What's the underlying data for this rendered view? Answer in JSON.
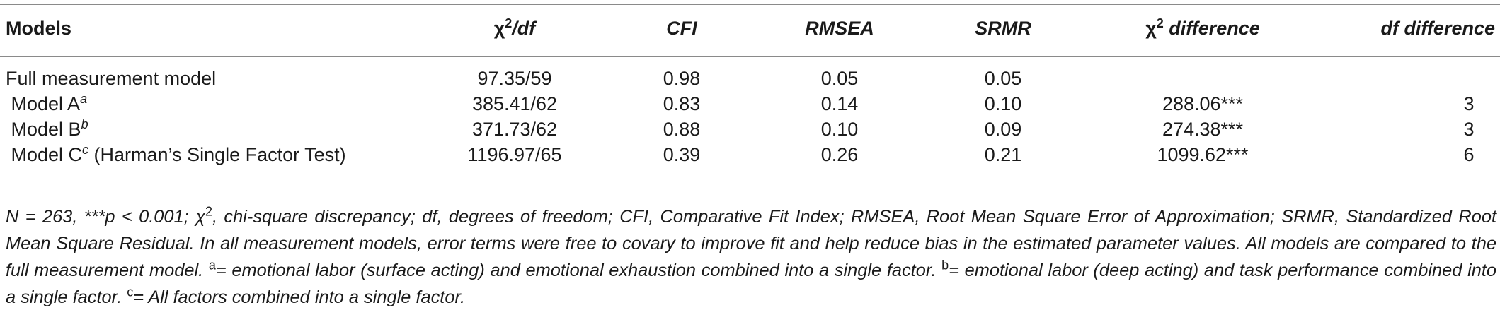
{
  "table": {
    "headers": {
      "models": "Models",
      "chi2df_base": "χ",
      "chi2df_sup": "2",
      "chi2df_rest": "/df",
      "cfi": "CFI",
      "rmsea": "RMSEA",
      "srmr": "SRMR",
      "chi2diff_base": "χ",
      "chi2diff_sup": "2",
      "chi2diff_rest": " difference",
      "dfdiff": "df difference"
    },
    "rows": [
      {
        "model": "Full measurement model",
        "sup": "",
        "suffix": "",
        "chi2df": "97.35/59",
        "cfi": "0.98",
        "rmsea": "0.05",
        "srmr": "0.05",
        "chi2diff": "",
        "dfdiff": ""
      },
      {
        "model": " Model A",
        "sup": "a",
        "suffix": "",
        "chi2df": "385.41/62",
        "cfi": "0.83",
        "rmsea": "0.14",
        "srmr": "0.10",
        "chi2diff": "288.06***",
        "dfdiff": "3"
      },
      {
        "model": " Model B",
        "sup": "b",
        "suffix": "",
        "chi2df": "371.73/62",
        "cfi": "0.88",
        "rmsea": "0.10",
        "srmr": "0.09",
        "chi2diff": "274.38***",
        "dfdiff": "3"
      },
      {
        "model": " Model C",
        "sup": "c",
        "suffix": " (Harman’s Single Factor Test)",
        "chi2df": "1196.97/65",
        "cfi": "0.39",
        "rmsea": "0.26",
        "srmr": "0.21",
        "chi2diff": "1099.62***",
        "dfdiff": "6"
      }
    ]
  },
  "note": {
    "part1": "N = 263, ***p < 0.001; χ",
    "sup2": "2",
    "part2": ", chi-square discrepancy; df, degrees of freedom; CFI, Comparative Fit Index; RMSEA, Root Mean Square Error of Approximation; SRMR, Standardized Root Mean Square Residual. In all measurement models, error terms were free to covary to improve fit and help reduce bias in the estimated parameter values. All models are compared to the full measurement model. ",
    "supA": "a",
    "part3": "= emotional labor (surface acting) and emotional exhaustion combined into a single factor. ",
    "supB": "b",
    "part4": "= emotional labor (deep acting) and task performance combined into a single factor. ",
    "supC": "c",
    "part5": "= All factors combined into a single factor."
  }
}
